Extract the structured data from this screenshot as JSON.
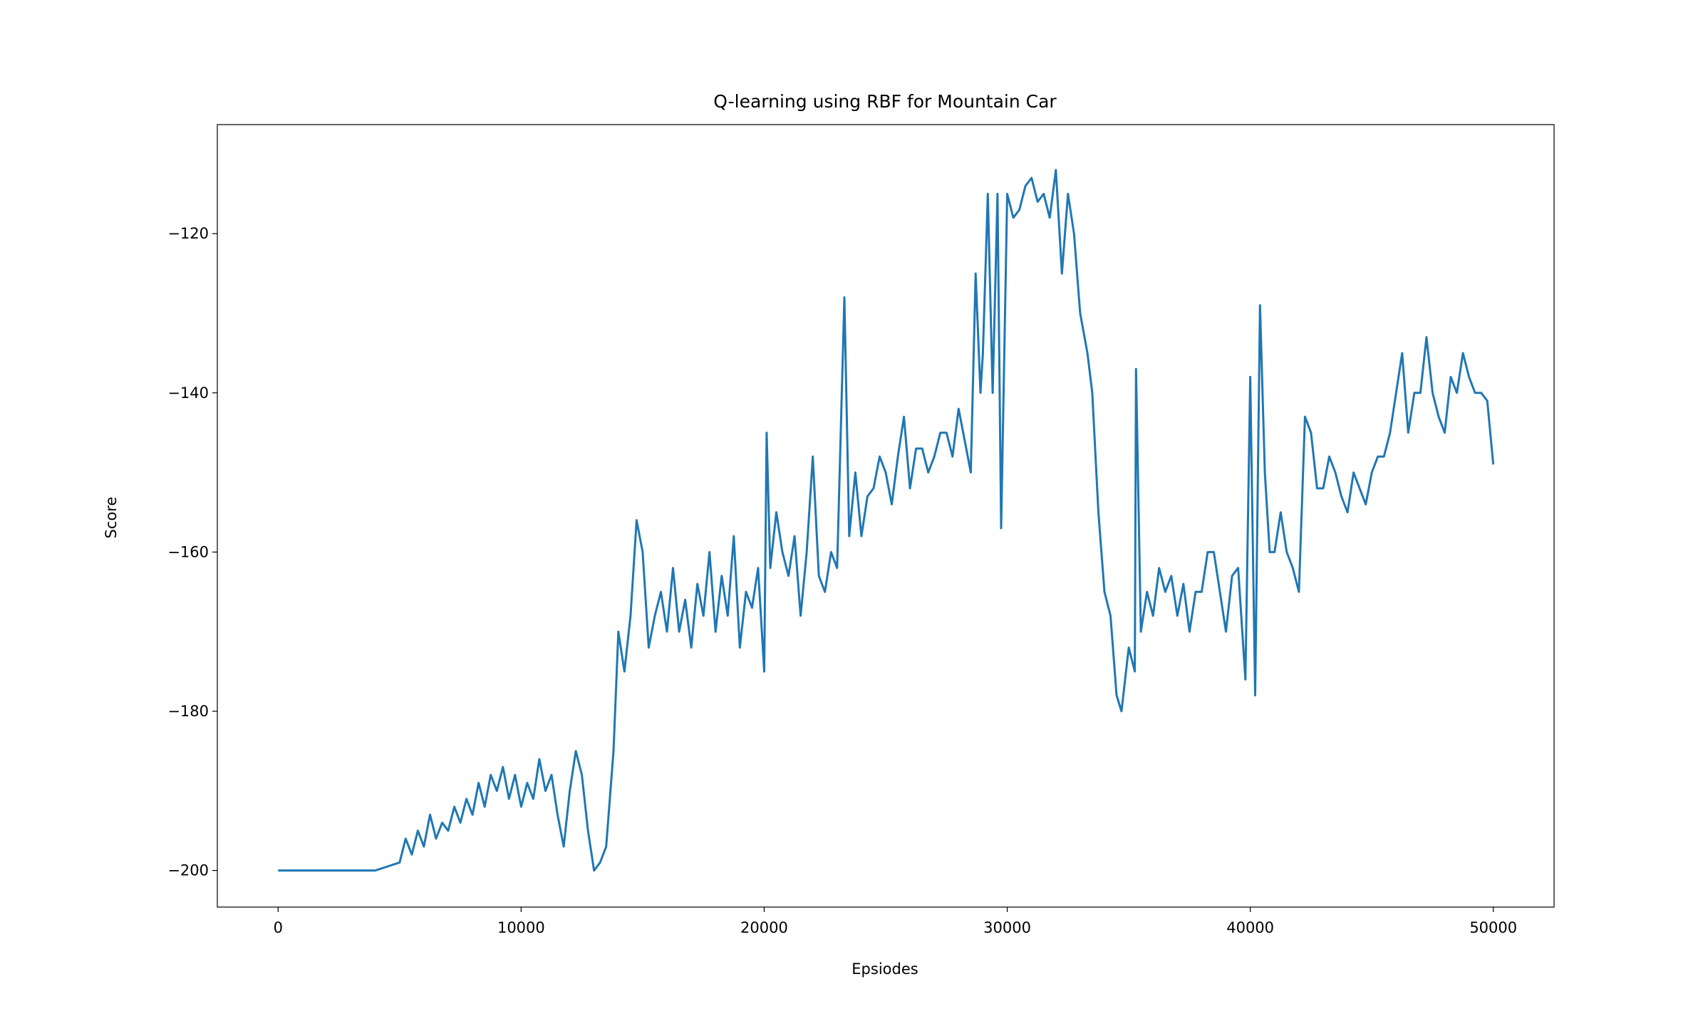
{
  "chart_data": {
    "type": "line",
    "title": "Q-learning using RBF for Mountain Car",
    "x_label": "Epsiodes",
    "y_label": "Score",
    "x": [
      0,
      1000,
      2000,
      3000,
      4000,
      4500,
      5000,
      5250,
      5500,
      5750,
      6000,
      6250,
      6500,
      6750,
      7000,
      7250,
      7500,
      7750,
      8000,
      8250,
      8500,
      8750,
      9000,
      9250,
      9500,
      9750,
      10000,
      10250,
      10500,
      10750,
      11000,
      11250,
      11500,
      11750,
      12000,
      12250,
      12500,
      12750,
      13000,
      13250,
      13500,
      13800,
      14000,
      14250,
      14500,
      14750,
      15000,
      15250,
      15500,
      15750,
      16000,
      16250,
      16500,
      16750,
      17000,
      17250,
      17500,
      17750,
      18000,
      18250,
      18500,
      18750,
      19000,
      19250,
      19500,
      19750,
      20000,
      20100,
      20250,
      20500,
      20750,
      21000,
      21250,
      21500,
      21750,
      22000,
      22250,
      22500,
      22750,
      23000,
      23300,
      23500,
      23750,
      24000,
      24250,
      24500,
      24750,
      25000,
      25250,
      25500,
      25750,
      26000,
      26250,
      26500,
      26750,
      27000,
      27250,
      27500,
      27750,
      28000,
      28250,
      28500,
      28700,
      28900,
      29000,
      29200,
      29400,
      29600,
      29750,
      30000,
      30250,
      30500,
      30750,
      31000,
      31250,
      31500,
      31750,
      32000,
      32250,
      32500,
      32750,
      33000,
      33300,
      33500,
      33750,
      34000,
      34250,
      34500,
      34700,
      35000,
      35250,
      35300,
      35500,
      35750,
      36000,
      36250,
      36500,
      36750,
      37000,
      37250,
      37500,
      37750,
      38000,
      38250,
      38500,
      38750,
      39000,
      39250,
      39500,
      39800,
      40000,
      40200,
      40400,
      40600,
      40800,
      41000,
      41250,
      41500,
      41750,
      42000,
      42250,
      42500,
      42750,
      43000,
      43250,
      43500,
      43750,
      44000,
      44250,
      44500,
      44750,
      45000,
      45250,
      45500,
      45750,
      46000,
      46250,
      46500,
      46750,
      47000,
      47250,
      47500,
      47750,
      48000,
      48250,
      48500,
      48750,
      49000,
      49250,
      49500,
      49750,
      50000
    ],
    "series": [
      {
        "name": "Score",
        "color": "#1f77b4",
        "values": [
          -200,
          -200,
          -200,
          -200,
          -200,
          -199.5,
          -199,
          -196,
          -198,
          -195,
          -197,
          -193,
          -196,
          -194,
          -195,
          -192,
          -194,
          -191,
          -193,
          -189,
          -192,
          -188,
          -190,
          -187,
          -191,
          -188,
          -192,
          -189,
          -191,
          -186,
          -190,
          -188,
          -193,
          -197,
          -190,
          -185,
          -188,
          -195,
          -200,
          -199,
          -197,
          -185,
          -170,
          -175,
          -168,
          -156,
          -160,
          -172,
          -168,
          -165,
          -170,
          -162,
          -170,
          -166,
          -172,
          -164,
          -168,
          -160,
          -170,
          -163,
          -168,
          -158,
          -172,
          -165,
          -167,
          -162,
          -175,
          -145,
          -162,
          -155,
          -160,
          -163,
          -158,
          -168,
          -160,
          -148,
          -163,
          -165,
          -160,
          -162,
          -128,
          -158,
          -150,
          -158,
          -153,
          -152,
          -148,
          -150,
          -154,
          -148,
          -143,
          -152,
          -147,
          -147,
          -150,
          -148,
          -145,
          -145,
          -148,
          -142,
          -146,
          -150,
          -125,
          -140,
          -135,
          -115,
          -140,
          -115,
          -157,
          -115,
          -118,
          -117,
          -114,
          -113,
          -116,
          -115,
          -118,
          -112,
          -125,
          -115,
          -120,
          -130,
          -135,
          -140,
          -155,
          -165,
          -168,
          -178,
          -180,
          -172,
          -175,
          -137,
          -170,
          -165,
          -168,
          -162,
          -165,
          -163,
          -168,
          -164,
          -170,
          -165,
          -165,
          -160,
          -160,
          -165,
          -170,
          -163,
          -162,
          -176,
          -138,
          -178,
          -129,
          -150,
          -160,
          -160,
          -155,
          -160,
          -162,
          -165,
          -143,
          -145,
          -152,
          -152,
          -148,
          -150,
          -153,
          -155,
          -150,
          -152,
          -154,
          -150,
          -148,
          -148,
          -145,
          -140,
          -135,
          -145,
          -140,
          -140,
          -133,
          -140,
          -143,
          -145,
          -138,
          -140,
          -135,
          -138,
          -140,
          -140,
          -141,
          -149
        ]
      }
    ],
    "xlim": [
      -2500,
      52500
    ],
    "xticks": [
      0,
      10000,
      20000,
      30000,
      40000,
      50000
    ],
    "ylim": [
      -204.6,
      -106.3
    ],
    "yticks": [
      {
        "value": -200,
        "label": "−200"
      },
      {
        "value": -180,
        "label": "−180"
      },
      {
        "value": -160,
        "label": "−160"
      },
      {
        "value": -140,
        "label": "−140"
      },
      {
        "value": -120,
        "label": "−120"
      }
    ]
  }
}
